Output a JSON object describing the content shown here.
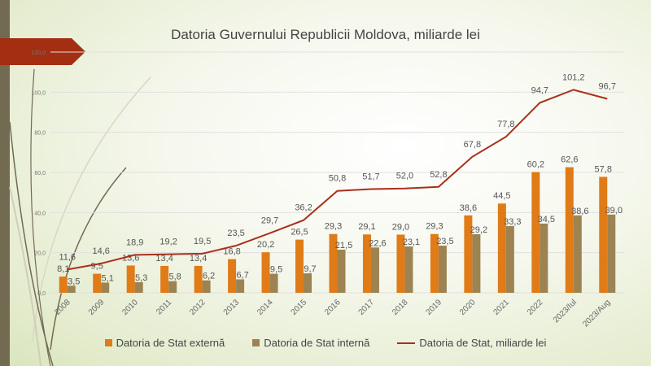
{
  "chart_data": {
    "type": "bar",
    "title": "Datoria Guvernului Republicii Moldova, miliarde lei",
    "categories": [
      "2008",
      "2009",
      "2010",
      "2011",
      "2012",
      "2013",
      "2014",
      "2015",
      "2016",
      "2017",
      "2018",
      "2019",
      "2020",
      "2021",
      "2022",
      "2023/Iul",
      "2023/Aug"
    ],
    "series": [
      {
        "name": "Datoria de Stat externă",
        "kind": "bar",
        "color": "#e07b17",
        "values": [
          8.1,
          9.5,
          13.6,
          13.4,
          13.4,
          16.8,
          20.2,
          26.5,
          29.3,
          29.1,
          29.0,
          29.3,
          38.6,
          44.5,
          60.2,
          62.6,
          57.8
        ],
        "labels": [
          "8,1",
          "9,5",
          "13,6",
          "13,4",
          "13,4",
          "16,8",
          "20,2",
          "26,5",
          "29,3",
          "29,1",
          "29,0",
          "29,3",
          "38,6",
          "44,5",
          "60,2",
          "62,6",
          "57,8"
        ]
      },
      {
        "name": "Datoria de Stat internă",
        "kind": "bar",
        "color": "#9d8352",
        "values": [
          3.5,
          5.1,
          5.3,
          5.8,
          6.2,
          6.7,
          9.5,
          9.7,
          21.5,
          22.6,
          23.1,
          23.5,
          29.2,
          33.3,
          34.5,
          38.6,
          39.0
        ],
        "labels": [
          "3,5",
          "5,1",
          "5,3",
          "5,8",
          "6,2",
          "6,7",
          "9,5",
          "9,7",
          "21,5",
          "22,6",
          "23,1",
          "23,5",
          "29,2",
          "33,3",
          "34,5",
          "38,6",
          "39,0"
        ]
      },
      {
        "name": "Datoria de Stat, miliarde lei",
        "kind": "line",
        "color": "#a8301a",
        "values": [
          11.6,
          14.6,
          18.9,
          19.2,
          19.5,
          23.5,
          29.7,
          36.2,
          50.8,
          51.7,
          52.0,
          52.8,
          67.8,
          77.8,
          94.7,
          101.2,
          96.7
        ],
        "labels": [
          "11,6",
          "14,6",
          "18,9",
          "19,2",
          "19,5",
          "23,5",
          "29,7",
          "36,2",
          "50,8",
          "51,7",
          "52,0",
          "52,8",
          "67,8",
          "77,8",
          "94,7",
          "101,2",
          "96,7"
        ]
      }
    ],
    "ylim": [
      0,
      120
    ],
    "yticks": [
      0,
      20,
      40,
      60,
      80,
      100,
      120
    ],
    "ytick_labels": [
      "0,0",
      "20,0",
      "40,0",
      "60,0",
      "80,0",
      "100,0",
      "120,0"
    ],
    "grid": true,
    "legend": "bottom"
  }
}
